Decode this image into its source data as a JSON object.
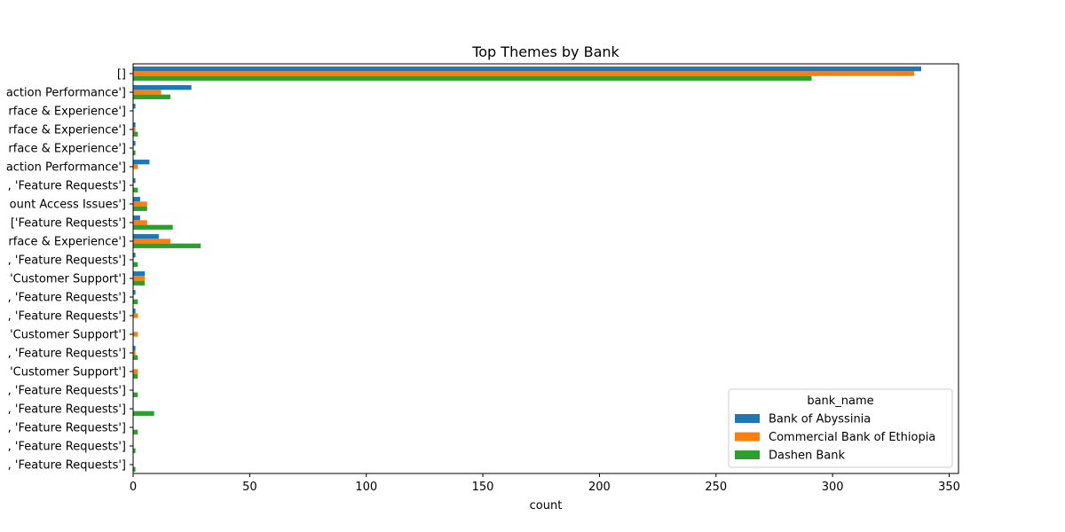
{
  "chart_data": {
    "type": "bar",
    "orientation": "horizontal",
    "title": "Top Themes by Bank",
    "xlabel": "count",
    "ylabel": "",
    "xlim": [
      0,
      354
    ],
    "xticks": [
      0,
      50,
      100,
      150,
      200,
      250,
      300,
      350
    ],
    "grid": false,
    "legend": {
      "title": "bank_name",
      "placement": "lower-right"
    },
    "categories": [
      "[]",
      "action Performance']",
      "rface & Experience']",
      "rface & Experience']",
      "rface & Experience']",
      "action Performance']",
      ", 'Feature Requests']",
      "ount Access Issues']",
      "['Feature Requests']",
      "rface & Experience']",
      ", 'Feature Requests']",
      "'Customer Support']",
      ", 'Feature Requests']",
      ", 'Feature Requests']",
      "'Customer Support']",
      ", 'Feature Requests']",
      "'Customer Support']",
      ", 'Feature Requests']",
      ", 'Feature Requests']",
      ", 'Feature Requests']",
      ", 'Feature Requests']",
      ", 'Feature Requests']"
    ],
    "series": [
      {
        "name": "Bank of Abyssinia",
        "color": "#1f77b4",
        "values": [
          338,
          25,
          1,
          1,
          1,
          7,
          1,
          3,
          3,
          11,
          1,
          5,
          1,
          1,
          0,
          1,
          0,
          0,
          0,
          0,
          0,
          0
        ]
      },
      {
        "name": "Commercial Bank of Ethiopia",
        "color": "#ff7f0e",
        "values": [
          335,
          12,
          0,
          1,
          0,
          2,
          0,
          6,
          6,
          16,
          0,
          5,
          0,
          2,
          2,
          1,
          2,
          0,
          0,
          0,
          0,
          0
        ]
      },
      {
        "name": "Dashen Bank",
        "color": "#2ca02c",
        "values": [
          291,
          16,
          0,
          2,
          1,
          0,
          2,
          6,
          17,
          29,
          2,
          5,
          2,
          0,
          0,
          2,
          2,
          2,
          9,
          2,
          1,
          1
        ]
      }
    ]
  }
}
